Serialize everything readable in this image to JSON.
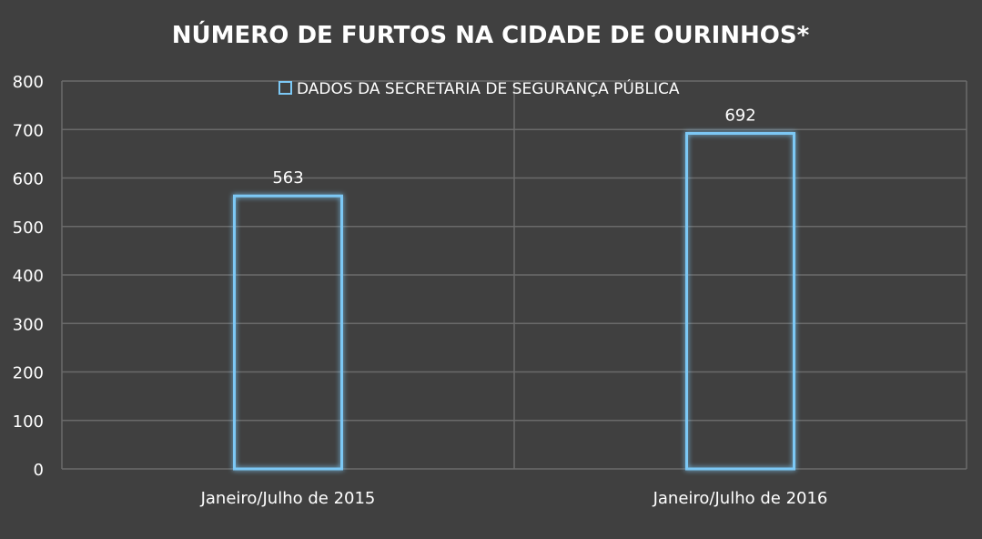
{
  "chart_data": {
    "type": "bar",
    "title": "NÚMERO DE FURTOS NA CIDADE DE OURINHOS*",
    "categories": [
      "Janeiro/Julho de 2015",
      "Janeiro/Julho de 2016"
    ],
    "series": [
      {
        "name": "DADOS DA SECRETARIA DE SEGURANÇA PÚBLICA",
        "values": [
          563,
          692
        ],
        "data_labels": [
          "563",
          "692"
        ]
      }
    ],
    "ylim": [
      0,
      800
    ],
    "yticks": [
      "0",
      "100",
      "200",
      "300",
      "400",
      "500",
      "600",
      "700",
      "800"
    ],
    "grid": true,
    "legend_position": "top",
    "colors": {
      "background": "#404040",
      "grid": "#6a6a6a",
      "bar_outline": "#7cc8f5",
      "bar_glow": "#2f8fd8"
    }
  }
}
